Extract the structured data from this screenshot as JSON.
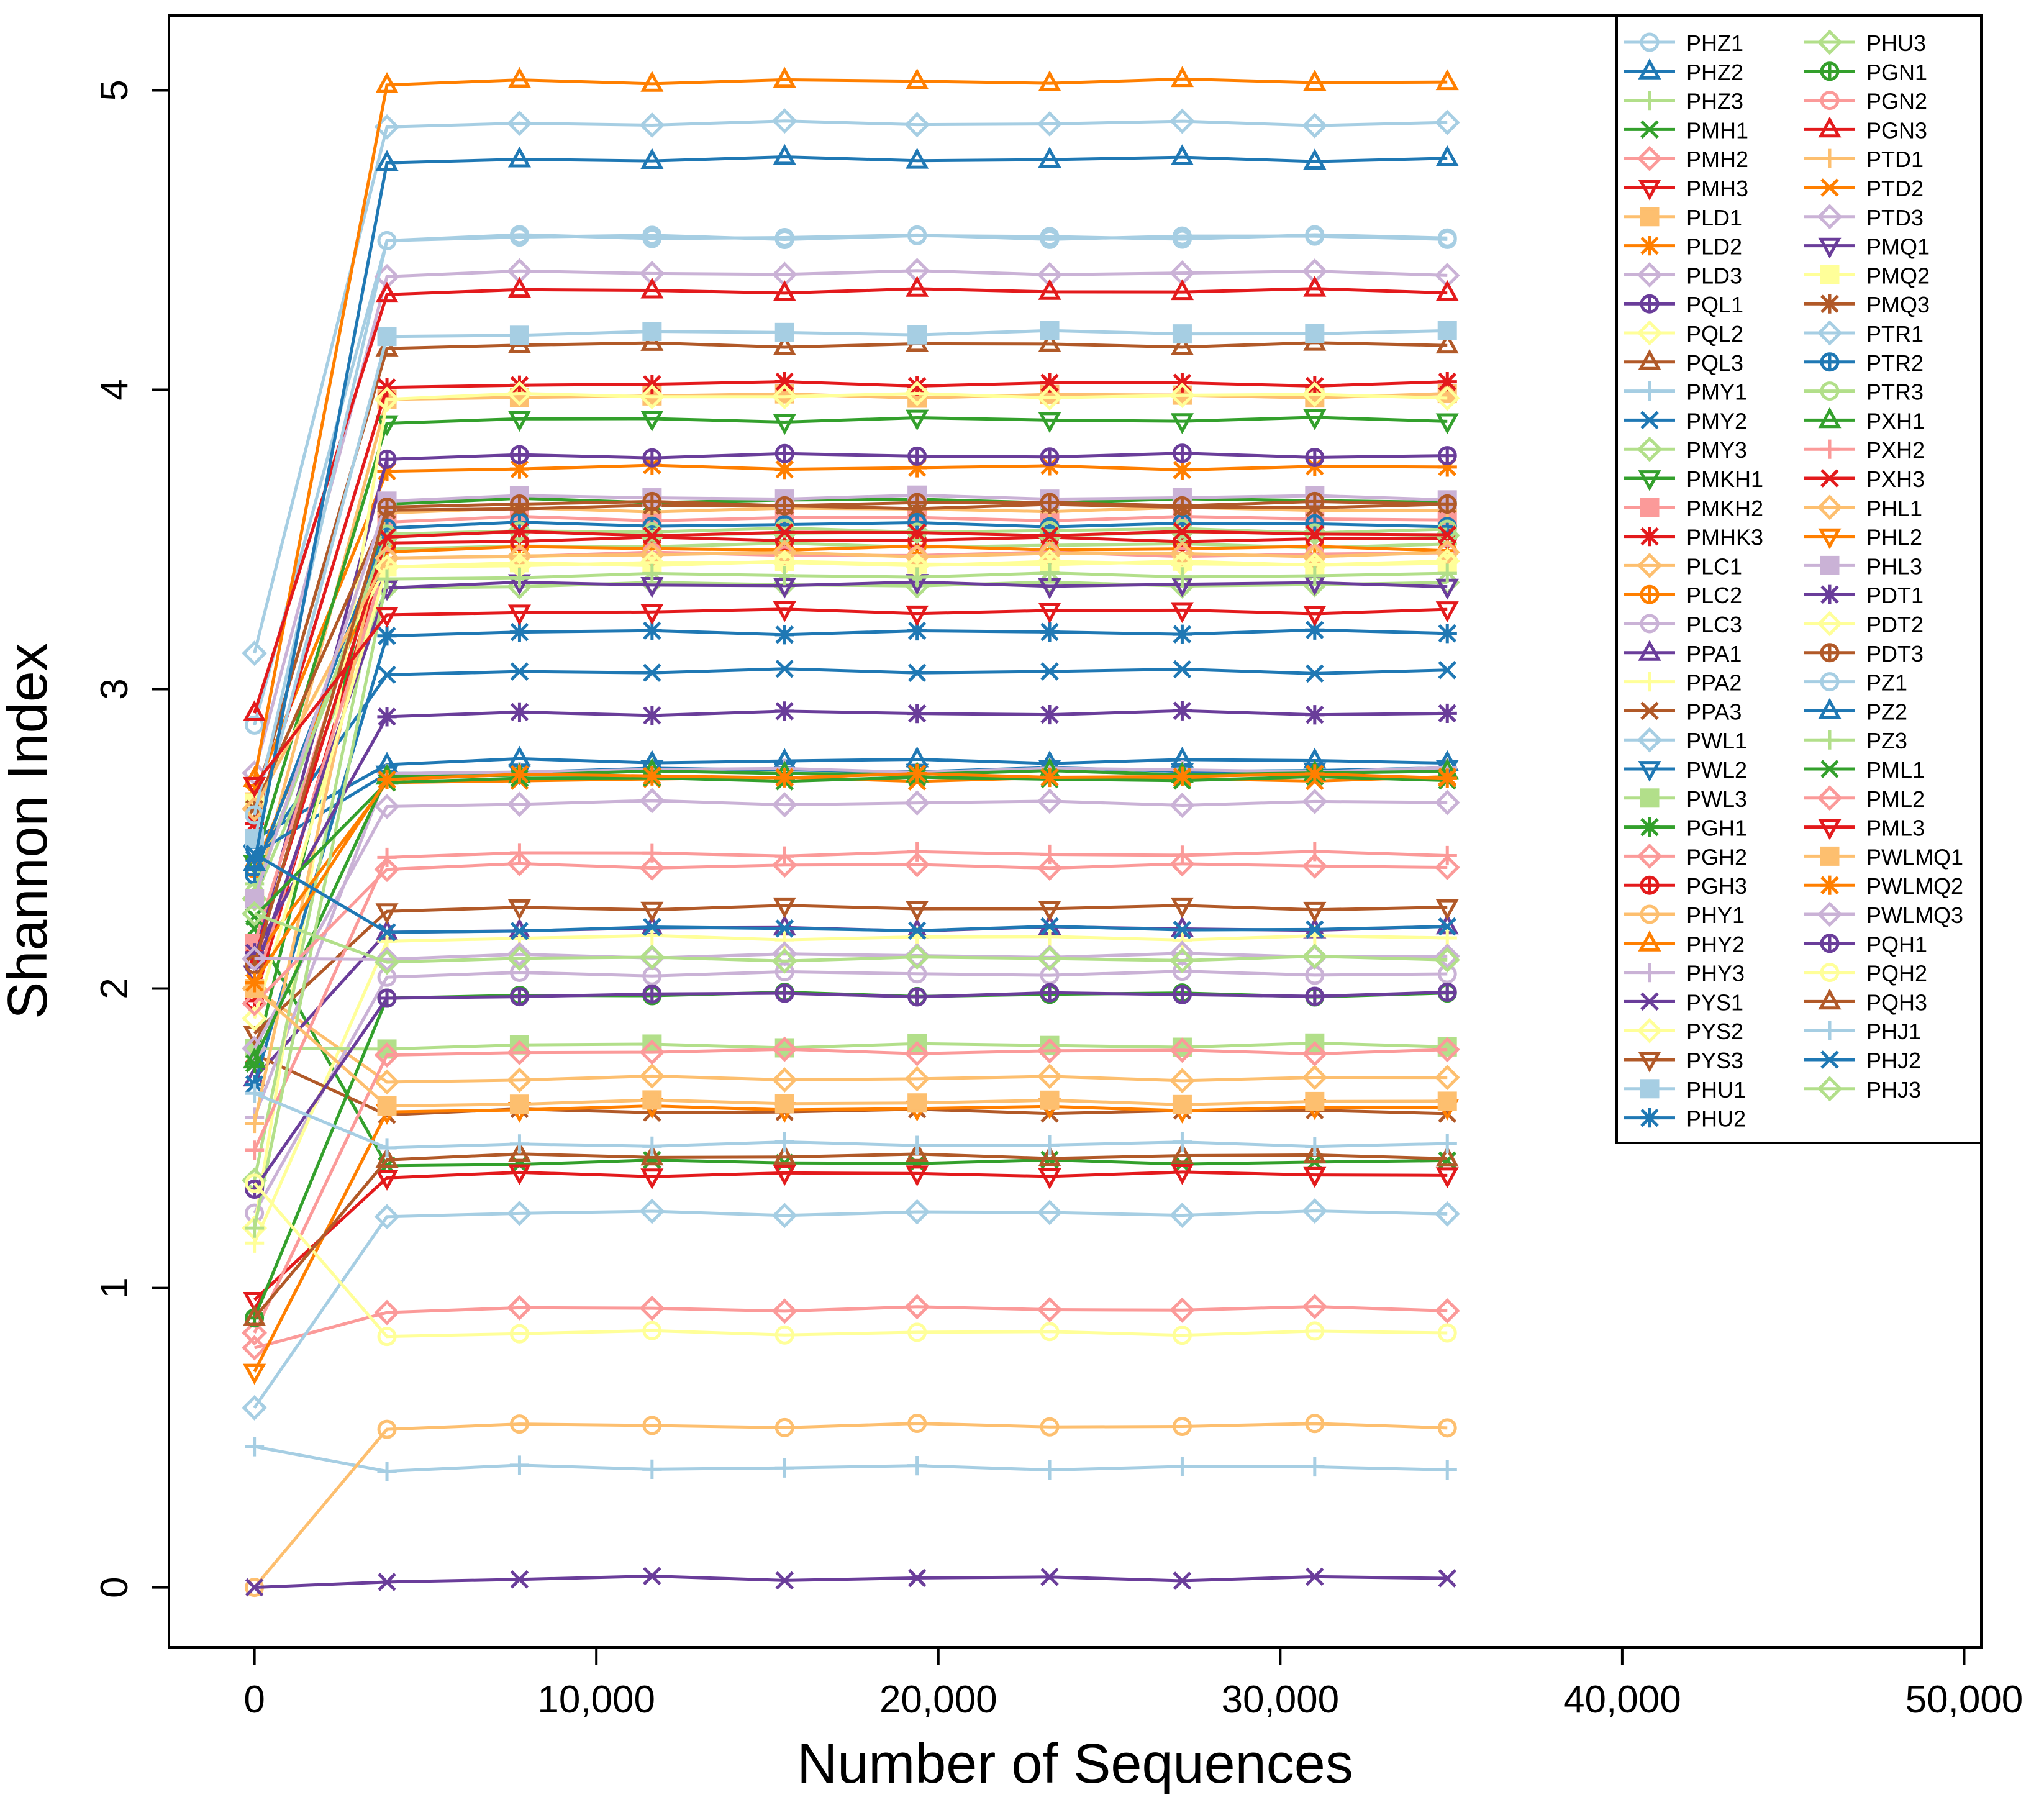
{
  "chart_data": {
    "type": "line",
    "title": "",
    "xlabel": "Number of Sequences",
    "ylabel": "Shannon Index",
    "xlim": [
      -2500,
      50500
    ],
    "ylim": [
      -0.2,
      5.25
    ],
    "x_ticks": [
      0,
      10000,
      20000,
      30000,
      40000,
      50000
    ],
    "x_tick_labels": [
      "0",
      "10,000",
      "20,000",
      "30,000",
      "40,000",
      "50,000"
    ],
    "y_ticks": [
      0,
      1,
      2,
      3,
      4,
      5
    ],
    "y_tick_labels": [
      "0",
      "1",
      "2",
      "3",
      "4",
      "5"
    ],
    "legend_position": "top-right",
    "x": [
      0,
      3876,
      7752,
      11628,
      15504,
      19380,
      23256,
      27132,
      31008,
      34884
    ],
    "series": [
      {
        "name": "PHZ1",
        "color": "#a6cee3",
        "marker": "circle",
        "start": 2.88,
        "plateau": 4.51
      },
      {
        "name": "PHZ2",
        "color": "#1f78b4",
        "marker": "triangle",
        "start": 2.5,
        "plateau": 2.76
      },
      {
        "name": "PHZ3",
        "color": "#b2df8a",
        "marker": "plus",
        "start": 2.35,
        "plateau": 3.48
      },
      {
        "name": "PMH1",
        "color": "#33a02c",
        "marker": "x",
        "start": 2.2,
        "plateau": 1.42
      },
      {
        "name": "PMH2",
        "color": "#fb9a99",
        "marker": "diamond",
        "start": 0.8,
        "plateau": 0.93
      },
      {
        "name": "PMH3",
        "color": "#e31a1c",
        "marker": "tridown",
        "start": 0.96,
        "plateau": 1.38
      },
      {
        "name": "PLD1",
        "color": "#fdbf6f",
        "marker": "square",
        "start": 2.3,
        "plateau": 3.98
      },
      {
        "name": "PLD2",
        "color": "#ff7f00",
        "marker": "asterisk",
        "start": 2.65,
        "plateau": 3.74
      },
      {
        "name": "PLD3",
        "color": "#cab2d6",
        "marker": "diamond",
        "start": 2.72,
        "plateau": 4.39
      },
      {
        "name": "PQL1",
        "color": "#6a3d9a",
        "marker": "oplus",
        "start": 2.1,
        "plateau": 3.78
      },
      {
        "name": "PQL2",
        "color": "#ffff99",
        "marker": "diamond",
        "start": 2.0,
        "plateau": 3.45
      },
      {
        "name": "PQL3",
        "color": "#b15928",
        "marker": "triangle",
        "start": 2.62,
        "plateau": 4.15
      },
      {
        "name": "PMY1",
        "color": "#a6cee3",
        "marker": "plus",
        "start": 0.47,
        "plateau": 0.4
      },
      {
        "name": "PMY2",
        "color": "#1f78b4",
        "marker": "x",
        "start": 2.43,
        "plateau": 3.06
      },
      {
        "name": "PMY3",
        "color": "#b2df8a",
        "marker": "diamond",
        "start": 2.3,
        "plateau": 3.35
      },
      {
        "name": "PMKH1",
        "color": "#33a02c",
        "marker": "tridown",
        "start": 2.42,
        "plateau": 3.9
      },
      {
        "name": "PMKH2",
        "color": "#fb9a99",
        "marker": "square",
        "start": 2.15,
        "plateau": 3.57
      },
      {
        "name": "PMHK3",
        "color": "#e31a1c",
        "marker": "asterisk",
        "start": 2.55,
        "plateau": 4.02
      },
      {
        "name": "PLC1",
        "color": "#fdbf6f",
        "marker": "diamond",
        "start": 2.0,
        "plateau": 1.7
      },
      {
        "name": "PLC2",
        "color": "#ff7f00",
        "marker": "oplus",
        "start": 2.4,
        "plateau": 3.47
      },
      {
        "name": "PLC3",
        "color": "#cab2d6",
        "marker": "circle",
        "start": 1.25,
        "plateau": 2.05
      },
      {
        "name": "PPA1",
        "color": "#6a3d9a",
        "marker": "triangle",
        "start": 1.7,
        "plateau": 2.2
      },
      {
        "name": "PPA2",
        "color": "#ffff99",
        "marker": "plus",
        "start": 1.15,
        "plateau": 2.17
      },
      {
        "name": "PPA3",
        "color": "#b15928",
        "marker": "x",
        "start": 1.78,
        "plateau": 1.59
      },
      {
        "name": "PWL1",
        "color": "#a6cee3",
        "marker": "diamond",
        "start": 3.12,
        "plateau": 4.89
      },
      {
        "name": "PWL2",
        "color": "#1f78b4",
        "marker": "tridown",
        "start": 2.45,
        "plateau": 2.73
      },
      {
        "name": "PWL3",
        "color": "#b2df8a",
        "marker": "square",
        "start": 1.8,
        "plateau": 1.81
      },
      {
        "name": "PGH1",
        "color": "#33a02c",
        "marker": "asterisk",
        "start": 1.75,
        "plateau": 3.63
      },
      {
        "name": "PGH2",
        "color": "#fb9a99",
        "marker": "diamond",
        "start": 0.85,
        "plateau": 1.79
      },
      {
        "name": "PGH3",
        "color": "#e31a1c",
        "marker": "oplus",
        "start": 1.96,
        "plateau": 3.5
      },
      {
        "name": "PHY1",
        "color": "#fdbf6f",
        "marker": "circle",
        "start": 0.0,
        "plateau": 0.54
      },
      {
        "name": "PHY2",
        "color": "#ff7f00",
        "marker": "triangle",
        "start": 2.7,
        "plateau": 5.03
      },
      {
        "name": "PHY3",
        "color": "#cab2d6",
        "marker": "plus",
        "start": 1.57,
        "plateau": 2.73
      },
      {
        "name": "PYS1",
        "color": "#6a3d9a",
        "marker": "x",
        "start": 0.0,
        "plateau": 0.03
      },
      {
        "name": "PYS2",
        "color": "#ffff99",
        "marker": "diamond",
        "start": 1.2,
        "plateau": 3.98
      },
      {
        "name": "PYS3",
        "color": "#b15928",
        "marker": "tridown",
        "start": 1.85,
        "plateau": 2.27
      },
      {
        "name": "PHU1",
        "color": "#a6cee3",
        "marker": "square",
        "start": 2.5,
        "plateau": 4.19
      },
      {
        "name": "PHU2",
        "color": "#1f78b4",
        "marker": "asterisk",
        "start": 1.68,
        "plateau": 3.19
      },
      {
        "name": "PHU3",
        "color": "#b2df8a",
        "marker": "diamond",
        "start": 1.36,
        "plateau": 3.52
      },
      {
        "name": "PGN1",
        "color": "#33a02c",
        "marker": "oplus",
        "start": 0.9,
        "plateau": 1.98
      },
      {
        "name": "PGN2",
        "color": "#fb9a99",
        "marker": "circle",
        "start": 2.0,
        "plateau": 3.45
      },
      {
        "name": "PGN3",
        "color": "#e31a1c",
        "marker": "triangle",
        "start": 2.92,
        "plateau": 4.33
      },
      {
        "name": "PTD1",
        "color": "#fdbf6f",
        "marker": "plus",
        "start": 1.55,
        "plateau": 3.6
      },
      {
        "name": "PTD2",
        "color": "#ff7f00",
        "marker": "x",
        "start": 2.1,
        "plateau": 2.7
      },
      {
        "name": "PTD3",
        "color": "#cab2d6",
        "marker": "diamond",
        "start": 1.8,
        "plateau": 2.62
      },
      {
        "name": "PMQ1",
        "color": "#6a3d9a",
        "marker": "tridown",
        "start": 2.05,
        "plateau": 3.35
      },
      {
        "name": "PMQ2",
        "color": "#ffff99",
        "marker": "square",
        "start": 2.62,
        "plateau": 3.42
      },
      {
        "name": "PMQ3",
        "color": "#b15928",
        "marker": "asterisk",
        "start": 2.6,
        "plateau": 3.61
      },
      {
        "name": "PTR1",
        "color": "#a6cee3",
        "marker": "diamond",
        "start": 0.6,
        "plateau": 1.25
      },
      {
        "name": "PTR2",
        "color": "#1f78b4",
        "marker": "oplus",
        "start": 2.38,
        "plateau": 3.55
      },
      {
        "name": "PTR3",
        "color": "#b2df8a",
        "marker": "circle",
        "start": 2.32,
        "plateau": 3.53
      },
      {
        "name": "PXH1",
        "color": "#33a02c",
        "marker": "triangle",
        "start": 1.76,
        "plateau": 2.72
      },
      {
        "name": "PXH2",
        "color": "#fb9a99",
        "marker": "plus",
        "start": 1.46,
        "plateau": 2.45
      },
      {
        "name": "PXH3",
        "color": "#e31a1c",
        "marker": "x",
        "start": 2.1,
        "plateau": 3.52
      },
      {
        "name": "PHL1",
        "color": "#fdbf6f",
        "marker": "diamond",
        "start": 2.6,
        "plateau": 3.45
      },
      {
        "name": "PHL2",
        "color": "#ff7f00",
        "marker": "tridown",
        "start": 0.72,
        "plateau": 1.6
      },
      {
        "name": "PHL3",
        "color": "#cab2d6",
        "marker": "square",
        "start": 2.3,
        "plateau": 3.64
      },
      {
        "name": "PDT1",
        "color": "#6a3d9a",
        "marker": "asterisk",
        "start": 2.12,
        "plateau": 2.92
      },
      {
        "name": "PDT2",
        "color": "#ffff99",
        "marker": "diamond",
        "start": 1.9,
        "plateau": 3.42
      },
      {
        "name": "PDT3",
        "color": "#b15928",
        "marker": "oplus",
        "start": 2.08,
        "plateau": 3.62
      },
      {
        "name": "PZ1",
        "color": "#a6cee3",
        "marker": "circle",
        "start": 2.58,
        "plateau": 4.51
      },
      {
        "name": "PZ2",
        "color": "#1f78b4",
        "marker": "triangle",
        "start": 2.42,
        "plateau": 4.77
      },
      {
        "name": "PZ3",
        "color": "#b2df8a",
        "marker": "plus",
        "start": 1.2,
        "plateau": 3.38
      },
      {
        "name": "PML1",
        "color": "#33a02c",
        "marker": "x",
        "start": 2.24,
        "plateau": 2.7
      },
      {
        "name": "PML2",
        "color": "#fb9a99",
        "marker": "diamond",
        "start": 1.95,
        "plateau": 2.41
      },
      {
        "name": "PML3",
        "color": "#e31a1c",
        "marker": "tridown",
        "start": 2.68,
        "plateau": 3.26
      },
      {
        "name": "PWLMQ1",
        "color": "#fdbf6f",
        "marker": "square",
        "start": 2.0,
        "plateau": 1.62
      },
      {
        "name": "PWLMQ2",
        "color": "#ff7f00",
        "marker": "asterisk",
        "start": 2.02,
        "plateau": 2.71
      },
      {
        "name": "PWLMQ3",
        "color": "#cab2d6",
        "marker": "diamond",
        "start": 2.1,
        "plateau": 2.11
      },
      {
        "name": "PQH1",
        "color": "#6a3d9a",
        "marker": "oplus",
        "start": 1.33,
        "plateau": 1.98
      },
      {
        "name": "PQH2",
        "color": "#ffff99",
        "marker": "circle",
        "start": 1.35,
        "plateau": 0.85
      },
      {
        "name": "PQH3",
        "color": "#b15928",
        "marker": "triangle",
        "start": 0.9,
        "plateau": 1.44
      },
      {
        "name": "PHJ1",
        "color": "#a6cee3",
        "marker": "plus",
        "start": 1.65,
        "plateau": 1.48
      },
      {
        "name": "PHJ2",
        "color": "#1f78b4",
        "marker": "x",
        "start": 2.45,
        "plateau": 2.2
      },
      {
        "name": "PHJ3",
        "color": "#b2df8a",
        "marker": "diamond",
        "start": 2.25,
        "plateau": 2.1
      }
    ]
  }
}
